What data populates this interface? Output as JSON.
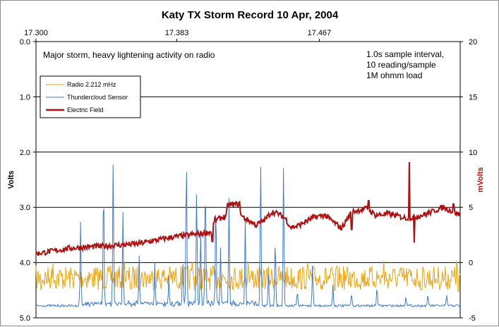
{
  "chart_data": {
    "type": "line",
    "title": "Katy TX Storm Record   10 Apr, 2004",
    "ylabel_left": "Volts",
    "ylabel_right": "mVolts",
    "y_left": {
      "min": 0.0,
      "max": 5.0,
      "inverted": true,
      "ticks": [
        "0.0",
        "1.0",
        "2.0",
        "3.0",
        "4.0",
        "5.0"
      ]
    },
    "y_right": {
      "min": -5,
      "max": 20,
      "ticks": [
        "-5",
        "0",
        "5",
        "10",
        "15",
        "20"
      ]
    },
    "x": {
      "min": 17.3,
      "max": 17.55,
      "tick_values": [
        17.3,
        17.383,
        17.467
      ],
      "tick_labels": [
        "17.300",
        "17.383",
        "17.467"
      ],
      "position": "top"
    },
    "gridlines": "horizontal",
    "legend": {
      "placement": "top-left",
      "entries": [
        "Radio  2.212 mHz",
        "Thundercloud Sensor",
        "Electric Field"
      ]
    },
    "annotations": {
      "left": "Major storm, heavy lightening activity on radio",
      "right": [
        "1.0s sample interval,",
        "10 reading/sample",
        "1M ohmm load"
      ]
    },
    "series": [
      {
        "name": "Radio  2.212 mHz",
        "axis": "left",
        "color": "#f2a20c",
        "baseline": 4.28,
        "noise": 0.22,
        "spikes_up": [
          [
            17.31,
            4.02
          ],
          [
            17.352,
            4.0
          ],
          [
            17.392,
            3.99
          ],
          [
            17.425,
            3.98
          ],
          [
            17.46,
            4.0
          ],
          [
            17.505,
            3.97
          ],
          [
            17.548,
            3.97
          ]
        ],
        "spikes_down": [
          [
            17.303,
            4.5
          ],
          [
            17.33,
            4.46
          ],
          [
            17.356,
            4.48
          ],
          [
            17.476,
            4.5
          ],
          [
            17.527,
            4.49
          ],
          [
            17.549,
            4.52
          ]
        ]
      },
      {
        "name": "Thundercloud Sensor",
        "axis": "left",
        "color": "#3d7ad6",
        "baseline": 4.78,
        "noise": 0.02,
        "spikes": [
          [
            17.3263,
            3.08
          ],
          [
            17.3398,
            1.88
          ],
          [
            17.3455,
            1.68
          ],
          [
            17.3512,
            2.88
          ],
          [
            17.3608,
            3.8
          ],
          [
            17.37,
            4.0
          ],
          [
            17.3783,
            4.2
          ],
          [
            17.3865,
            3.65
          ],
          [
            17.3886,
            1.3
          ],
          [
            17.3947,
            2.12
          ],
          [
            17.397,
            3.2
          ],
          [
            17.3998,
            1.8
          ],
          [
            17.406,
            2.3
          ],
          [
            17.4088,
            3.6
          ],
          [
            17.4137,
            2.6
          ],
          [
            17.4233,
            3.1
          ],
          [
            17.4324,
            1.6
          ],
          [
            17.437,
            4.1
          ],
          [
            17.441,
            3.2
          ],
          [
            17.4459,
            1.88
          ],
          [
            17.454,
            4.45
          ],
          [
            17.463,
            3.9
          ],
          [
            17.475,
            4.4
          ],
          [
            17.486,
            4.5
          ],
          [
            17.501,
            4.35
          ],
          [
            17.518,
            4.6
          ],
          [
            17.531,
            4.52
          ],
          [
            17.542,
            4.55
          ]
        ]
      },
      {
        "name": "Electric Field",
        "axis": "right",
        "color": "#b01010",
        "points": [
          [
            17.3,
            0.8
          ],
          [
            17.32,
            1.3
          ],
          [
            17.34,
            1.5
          ],
          [
            17.36,
            1.7
          ],
          [
            17.38,
            2.3
          ],
          [
            17.396,
            2.6
          ],
          [
            17.404,
            2.8
          ],
          [
            17.405,
            3.8
          ],
          [
            17.412,
            4.2
          ],
          [
            17.413,
            5.2
          ],
          [
            17.42,
            5.3
          ],
          [
            17.421,
            4.2
          ],
          [
            17.43,
            3.4
          ],
          [
            17.435,
            3.9
          ],
          [
            17.439,
            4.6
          ],
          [
            17.443,
            4.4
          ],
          [
            17.447,
            4.0
          ],
          [
            17.45,
            3.2
          ],
          [
            17.454,
            3.3
          ],
          [
            17.46,
            3.8
          ],
          [
            17.464,
            4.1
          ],
          [
            17.47,
            4.3
          ],
          [
            17.476,
            3.6
          ],
          [
            17.48,
            3.1
          ],
          [
            17.486,
            4.6
          ],
          [
            17.495,
            4.9
          ],
          [
            17.5,
            4.3
          ],
          [
            17.508,
            4.4
          ],
          [
            17.516,
            4.1
          ],
          [
            17.52,
            4.0
          ],
          [
            17.53,
            4.4
          ],
          [
            17.54,
            5.0
          ],
          [
            17.55,
            4.3
          ]
        ],
        "spikes": [
          [
            17.404,
            1.9
          ],
          [
            17.42,
            5.5
          ],
          [
            17.486,
            3.0
          ],
          [
            17.496,
            5.6
          ],
          [
            17.514,
            4.3
          ],
          [
            17.52,
            9.1
          ],
          [
            17.523,
            1.8
          ],
          [
            17.546,
            5.3
          ]
        ]
      }
    ]
  }
}
